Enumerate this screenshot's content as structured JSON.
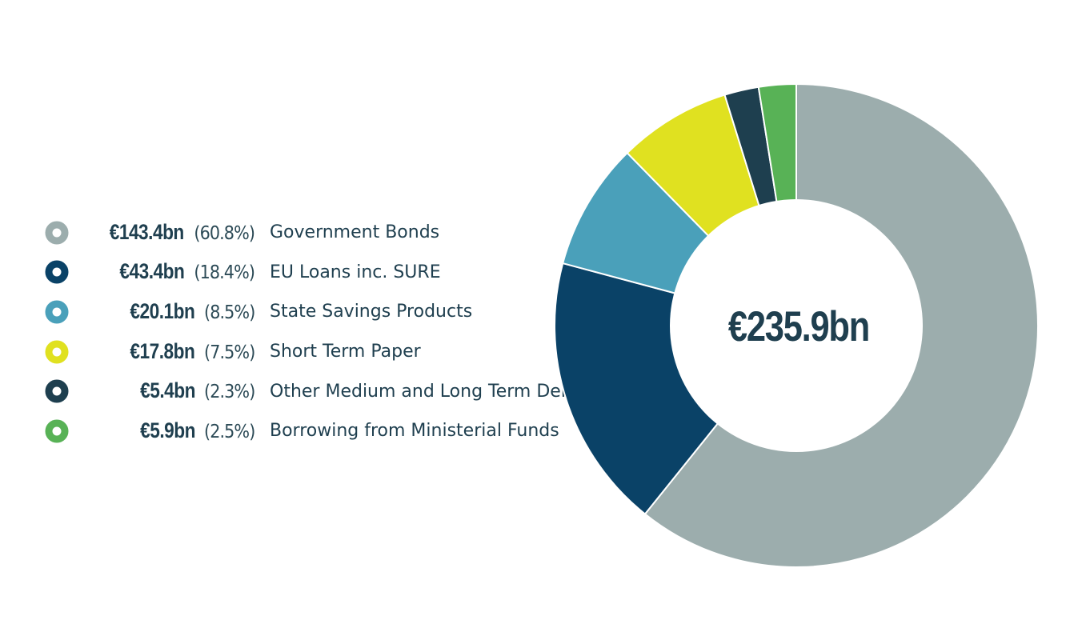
{
  "chart_data": {
    "type": "pie",
    "center_label": "€235.9bn",
    "legend_position": "left",
    "series": [
      {
        "amount": "€143.4bn",
        "percent_label": "(60.8%)",
        "name": "Government Bonds",
        "value": 143.4,
        "color": "#9cadad"
      },
      {
        "amount": "€43.4bn",
        "percent_label": "(18.4%)",
        "name": "EU Loans inc. SURE",
        "value": 43.4,
        "color": "#0a4267"
      },
      {
        "amount": "€20.1bn",
        "percent_label": "(8.5%)",
        "name": "State Savings Products",
        "value": 20.1,
        "color": "#4aa0ba"
      },
      {
        "amount": "€17.8bn",
        "percent_label": "(7.5%)",
        "name": "Short Term Paper",
        "value": 17.8,
        "color": "#e0e120"
      },
      {
        "amount": "€5.4bn",
        "percent_label": "(2.3%)",
        "name": "Other Medium and Long Term Debt",
        "value": 5.4,
        "color": "#1e3f4f"
      },
      {
        "amount": "€5.9bn",
        "percent_label": "(2.5%)",
        "name": "Borrowing from Ministerial Funds",
        "value": 5.9,
        "color": "#58b256"
      }
    ]
  }
}
